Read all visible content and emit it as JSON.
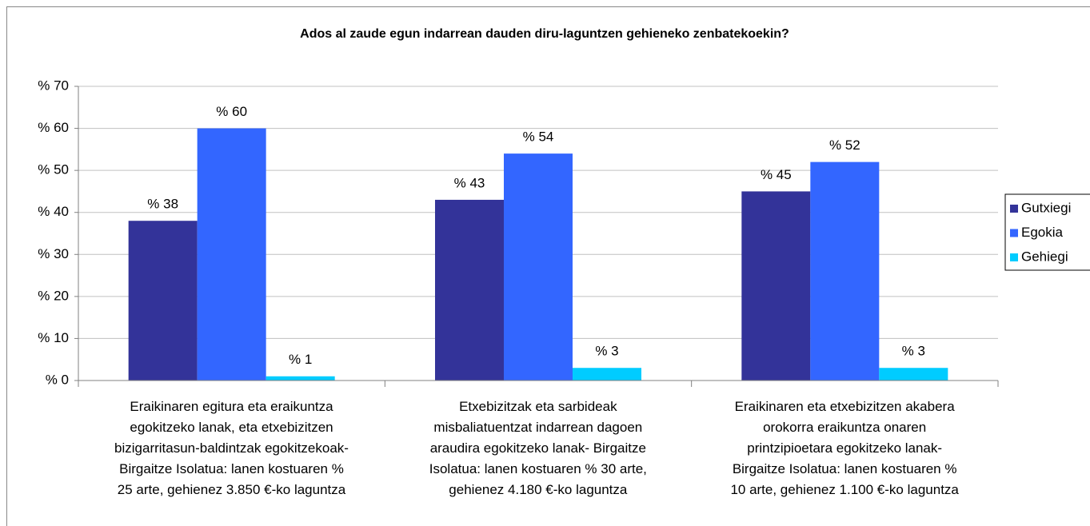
{
  "chart_data": {
    "type": "bar",
    "title": "Ados al zaude egun indarrean dauden diru-laguntzen gehieneko zenbatekoekin?",
    "categories": [
      "Eraikinaren egitura eta eraikuntza\negokitzeko lanak, eta etxebizitzen\nbizigarritasun-baldintzak egokitzekoak-\nBirgaitze Isolatua: lanen kostuaren %\n25 arte, gehienez 3.850 €-ko laguntza",
      "Etxebizitzak eta sarbideak\nmisbaliatuentzat indarrean dagoen\naraudira egokitzeko lanak- Birgaitze\nIsolatua: lanen kostuaren % 30 arte,\ngehienez 4.180 €-ko laguntza",
      "Eraikinaren eta etxebizitzen akabera\norokorra  eraikuntza onaren\nprintzipioetara egokitzeko lanak-\nBirgaitze Isolatua: lanen kostuaren %\n10 arte, gehienez 1.100 €-ko laguntza"
    ],
    "series": [
      {
        "name": "Gutxiegi",
        "color": "#333399",
        "values": [
          38,
          43,
          45
        ],
        "value_labels": [
          "% 38",
          "% 43",
          "% 45"
        ]
      },
      {
        "name": "Egokia",
        "color": "#3366ff",
        "values": [
          60,
          54,
          52
        ],
        "value_labels": [
          "% 60",
          "% 54",
          "% 52"
        ]
      },
      {
        "name": "Gehiegi",
        "color": "#00ccff",
        "values": [
          1,
          3,
          3
        ],
        "value_labels": [
          "% 1",
          "% 3",
          "% 3"
        ]
      }
    ],
    "ylim": [
      0,
      70
    ],
    "yticks": [
      {
        "value": 0,
        "label": "% 0"
      },
      {
        "value": 10,
        "label": "% 10"
      },
      {
        "value": 20,
        "label": "% 20"
      },
      {
        "value": 30,
        "label": "% 30"
      },
      {
        "value": 40,
        "label": "% 40"
      },
      {
        "value": 50,
        "label": "% 50"
      },
      {
        "value": 60,
        "label": "% 60"
      },
      {
        "value": 70,
        "label": "% 70"
      }
    ],
    "grid": true,
    "legend": "right"
  }
}
